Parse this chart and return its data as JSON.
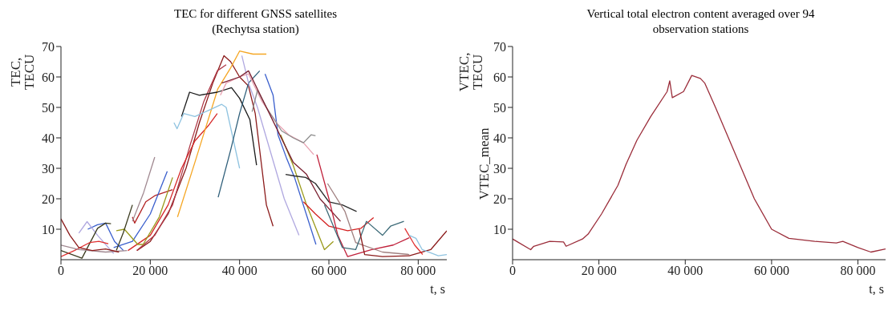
{
  "chart_data": [
    {
      "type": "line",
      "title": "TEC for different GNSS satellites (Rechytsa station)",
      "xlabel": "t, s",
      "ylabel": "TEC, TECU",
      "xlim": [
        0,
        86400
      ],
      "ylim": [
        0,
        70
      ],
      "xticks": [
        0,
        {
          "value": 20000,
          "label": "20 000"
        },
        {
          "value": 40000,
          "label": "40 000"
        },
        {
          "value": 60000,
          "label": "60 000"
        },
        {
          "value": 80000,
          "label": "80 000"
        }
      ],
      "yticks": [
        10,
        20,
        30,
        40,
        50,
        60,
        70
      ],
      "grid": false,
      "legend": false,
      "marker": "none",
      "line_style": "solid",
      "series": [
        {
          "color": "#8b1a1a",
          "x": [
            17000,
            20000,
            24000,
            28000,
            31000,
            34000,
            36500,
            38000,
            40000,
            42000,
            43500,
            45000,
            46000,
            47500
          ],
          "values": [
            3,
            6,
            15,
            30,
            45,
            58,
            67,
            65,
            60,
            57,
            48,
            30,
            18,
            11
          ]
        },
        {
          "color": "#b03a48",
          "x": [
            17000,
            21000,
            25000,
            29000,
            32000,
            35000,
            37000
          ],
          "values": [
            3,
            8,
            18,
            38,
            52,
            62,
            64
          ]
        },
        {
          "color": "#d62728",
          "x": [
            15000,
            20000,
            24000,
            27000,
            30000,
            33000,
            35000
          ],
          "values": [
            3,
            8,
            18,
            30,
            39,
            44,
            48
          ]
        },
        {
          "color": "#b22222",
          "x": [
            16000,
            16500,
            19000,
            21000,
            25000
          ],
          "values": [
            14,
            12,
            19,
            21,
            23
          ]
        },
        {
          "color": "#f5a623",
          "x": [
            26100,
            30000,
            35100,
            38000,
            40000,
            43000,
            46000
          ],
          "values": [
            14,
            32,
            56,
            63,
            68.5,
            67.5,
            67.5
          ]
        },
        {
          "color": "#1a1a1a",
          "x": [
            27000,
            28800,
            31000,
            35000,
            38200,
            40000,
            42300,
            43800
          ],
          "values": [
            47,
            55,
            54,
            55,
            56.5,
            53,
            46,
            31
          ]
        },
        {
          "color": "#8fc3e0",
          "x": [
            25300,
            26000,
            27500,
            30000,
            33000,
            36000,
            37000,
            38500,
            40000
          ],
          "values": [
            45,
            43,
            48,
            47,
            49,
            51,
            50,
            40,
            30
          ]
        },
        {
          "color": "#2f5f7a",
          "x": [
            35200,
            38000,
            40000,
            42000,
            44500
          ],
          "values": [
            20.5,
            36,
            48,
            58,
            62
          ]
        },
        {
          "color": "#3a5fcd",
          "x": [
            45700,
            47500,
            48600,
            50600,
            52300,
            57100
          ],
          "values": [
            61,
            54,
            41,
            33,
            27,
            5
          ]
        },
        {
          "color": "#3a5fcd",
          "x": [
            11800,
            16000,
            20000,
            23800
          ],
          "values": [
            4,
            6,
            15,
            29
          ]
        },
        {
          "color": "#3a5fcd",
          "x": [
            6000,
            8200,
            10000,
            12000,
            14000
          ],
          "values": [
            10,
            11.5,
            12,
            6,
            3
          ]
        },
        {
          "color": "#b0a8e0",
          "x": [
            4000,
            5850,
            8200,
            11800
          ],
          "values": [
            8.7,
            12.5,
            8,
            2
          ]
        },
        {
          "color": "#b0a8e0",
          "x": [
            40500,
            42000,
            44000,
            46000,
            48000,
            50000,
            53300
          ],
          "values": [
            67,
            58,
            50,
            40,
            30,
            20,
            8
          ]
        },
        {
          "color": "#9a9a1a",
          "x": [
            12400,
            14200,
            17200,
            18400,
            22000,
            25000
          ],
          "values": [
            9.5,
            10,
            5,
            5,
            14,
            27
          ]
        },
        {
          "color": "#9a9a1a",
          "x": [
            49200,
            52000,
            55000,
            59000,
            61000
          ],
          "values": [
            41,
            31,
            18,
            3.3,
            6
          ]
        },
        {
          "color": "#a08890",
          "x": [
            16000,
            18500,
            21000
          ],
          "values": [
            12.6,
            22,
            33.7
          ]
        },
        {
          "color": "#3b3b1f",
          "x": [
            0,
            4700,
            8200,
            10000,
            11200
          ],
          "values": [
            3,
            0.5,
            10.3,
            12,
            11.8
          ]
        },
        {
          "color": "#3b3b1f",
          "x": [
            12400,
            14000,
            16000
          ],
          "values": [
            3,
            9,
            18
          ]
        },
        {
          "color": "#e8a0b0",
          "x": [
            35700,
            37000,
            40000,
            42000,
            45000,
            48400,
            51000,
            54300,
            56600
          ],
          "values": [
            54,
            58,
            60,
            61,
            52,
            44.7,
            41,
            38.4,
            34.5
          ]
        },
        {
          "color": "#8c8c8c",
          "x": [
            42800,
            44000,
            46000,
            49400,
            52000,
            54300,
            56000,
            57000
          ],
          "values": [
            48.6,
            55.6,
            50,
            42.3,
            40,
            38.4,
            41,
            40.7
          ]
        },
        {
          "color": "#7a2030",
          "x": [
            36000,
            40000,
            42000,
            44000,
            47000,
            50000,
            52000,
            55000,
            58000,
            62600
          ],
          "values": [
            58,
            60,
            62,
            56,
            47,
            38,
            32,
            28,
            20,
            12.6
          ]
        },
        {
          "color": "#2b2b2b",
          "x": [
            50300,
            52300,
            54800,
            57000,
            60000,
            63000,
            66200
          ],
          "values": [
            28,
            27.5,
            27,
            25,
            19,
            18,
            15.8
          ]
        },
        {
          "color": "#d42020",
          "x": [
            54300,
            57000,
            60000,
            64200,
            67200,
            70000
          ],
          "values": [
            19,
            15,
            11,
            9.5,
            10.3,
            13.8
          ]
        },
        {
          "color": "#c0203a",
          "x": [
            57300,
            60000,
            62000,
            64200,
            69600,
            74400,
            78000
          ],
          "values": [
            34.5,
            20,
            8,
            1,
            3.3,
            4.8,
            7.2
          ]
        },
        {
          "color": "#a08080",
          "x": [
            59700,
            63600,
            66000,
            72000,
            78000
          ],
          "values": [
            25,
            15.8,
            5.6,
            2.5,
            1.7
          ]
        },
        {
          "color": "#3d6b78",
          "x": [
            59000,
            63000,
            66000,
            68400,
            72000,
            73800,
            76800
          ],
          "values": [
            18,
            4,
            3.3,
            12.6,
            8,
            11,
            12.6
          ]
        },
        {
          "color": "#8b1a1a",
          "x": [
            66800,
            68000,
            72000,
            78000,
            82800,
            86400
          ],
          "values": [
            10,
            1.7,
            1,
            1.3,
            3.3,
            9.5
          ]
        },
        {
          "color": "#e03030",
          "x": [
            77000,
            79200,
            81000
          ],
          "values": [
            10.3,
            4.8,
            1.7
          ]
        },
        {
          "color": "#8fc3e0",
          "x": [
            78000,
            79500,
            80900,
            84500,
            86400
          ],
          "values": [
            8,
            7,
            3.3,
            1.3,
            1.7
          ]
        },
        {
          "color": "#e03030",
          "x": [
            0,
            3000,
            6400,
            8500,
            10600
          ],
          "values": [
            1,
            3,
            5.6,
            6,
            5.2
          ]
        },
        {
          "color": "#a08890",
          "x": [
            0,
            4000,
            10000,
            14800
          ],
          "values": [
            4.8,
            3.3,
            2.5,
            3
          ]
        },
        {
          "color": "#8b1a1a",
          "x": [
            0,
            2000,
            4000,
            7000,
            10000,
            13000
          ],
          "values": [
            13.4,
            8,
            4,
            3,
            3.5,
            2.5
          ]
        }
      ]
    },
    {
      "type": "line",
      "title": "Vertical total electron content averaged over 94 observation stations",
      "xlabel": "t, s",
      "ylabel": "VTEC, TECU",
      "xlim": [
        0,
        86400
      ],
      "ylim": [
        0,
        70
      ],
      "xticks": [
        0,
        {
          "value": 20000,
          "label": "20 000"
        },
        {
          "value": 40000,
          "label": "40 000"
        },
        {
          "value": 60000,
          "label": "60 000"
        },
        {
          "value": 80000,
          "label": "80 000"
        }
      ],
      "yticks": [
        10,
        20,
        30,
        40,
        50,
        60,
        70
      ],
      "grid": false,
      "legend": false,
      "marker": "none",
      "line_style": "solid",
      "series": [
        {
          "name": "VTEC_mean",
          "color": "#9b2d3a",
          "x": [
            0,
            4200,
            4900,
            8600,
            11800,
            12400,
            16200,
            17500,
            20600,
            24400,
            26300,
            28800,
            32000,
            35800,
            36400,
            37000,
            39600,
            41500,
            43500,
            44500,
            47000,
            50000,
            53000,
            56000,
            60000,
            64000,
            70000,
            75000,
            76500,
            80000,
            83000,
            86400
          ],
          "values": [
            6.8,
            3.3,
            4.4,
            6,
            5.8,
            4.4,
            6.8,
            8.4,
            15,
            24.4,
            31.4,
            39.2,
            47,
            55.2,
            58.7,
            53.2,
            55.2,
            60.5,
            59.5,
            58,
            50,
            40,
            30,
            20,
            10,
            7,
            6,
            5.5,
            6,
            4,
            2.5,
            3.5
          ]
        }
      ]
    }
  ]
}
